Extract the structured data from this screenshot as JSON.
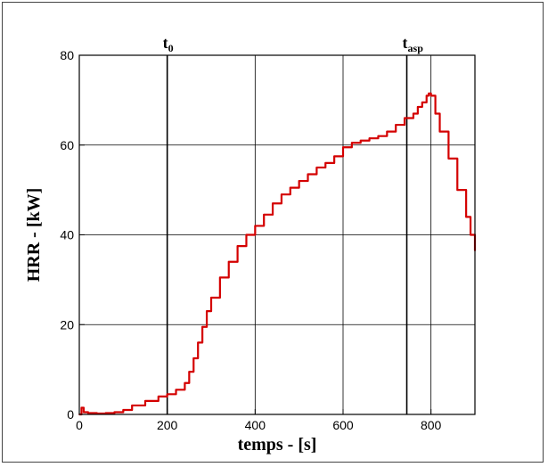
{
  "chart_data": {
    "type": "line",
    "xlabel": "temps - [s]",
    "ylabel": "HRR - [kW]",
    "xlim": [
      0,
      900
    ],
    "ylim": [
      0,
      80
    ],
    "x_ticks": [
      0,
      200,
      400,
      600,
      800
    ],
    "y_ticks": [
      0,
      20,
      40,
      60,
      80
    ],
    "grid": true,
    "series_color": "#d40000",
    "vertical_markers": [
      {
        "x": 200,
        "label": "t",
        "subscript": "0"
      },
      {
        "x": 745,
        "label": "t",
        "subscript": "asp"
      }
    ],
    "series": [
      {
        "x": [
          0,
          5,
          10,
          20,
          40,
          60,
          80,
          100,
          120,
          150,
          180,
          200,
          220,
          240,
          250,
          260,
          270,
          280,
          290,
          300,
          320,
          340,
          360,
          380,
          400,
          420,
          440,
          460,
          480,
          500,
          520,
          540,
          560,
          580,
          600,
          620,
          640,
          660,
          680,
          700,
          720,
          740,
          760,
          770,
          780,
          790,
          795,
          800,
          810,
          820,
          840,
          860,
          880,
          890,
          900
        ],
        "values": [
          0,
          1.5,
          0.5,
          0.3,
          0.2,
          0.3,
          0.5,
          1.0,
          2.0,
          3.0,
          4.0,
          4.5,
          5.5,
          7.0,
          9.5,
          12.5,
          16.0,
          19.5,
          23.0,
          26.0,
          30.5,
          34.0,
          37.5,
          40.0,
          42.0,
          44.5,
          47.0,
          49.0,
          50.5,
          52.0,
          53.5,
          55.0,
          56.0,
          57.5,
          59.5,
          60.5,
          61.0,
          61.5,
          62.0,
          63.0,
          64.5,
          66.0,
          67.0,
          68.5,
          69.5,
          71.0,
          71.5,
          71.0,
          67.0,
          63.0,
          57.0,
          50.0,
          44.0,
          40.0,
          36.5
        ]
      }
    ]
  }
}
